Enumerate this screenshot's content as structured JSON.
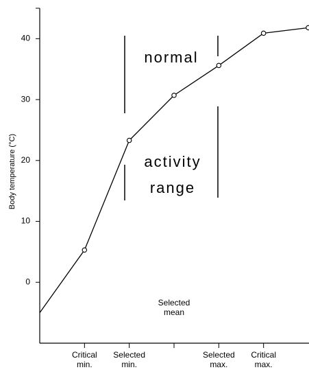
{
  "chart_data": {
    "type": "line",
    "y_label": "Body temperature (°C)",
    "categories": [
      null,
      "Critical min.",
      "Selected min.",
      "Selected mean",
      "Selected max.",
      "Critical max.",
      null
    ],
    "values": [
      -5,
      5.3,
      23.3,
      30.7,
      35.6,
      40.9,
      41.8
    ],
    "color": "#000000",
    "ylim": [
      -10,
      45
    ],
    "yticks": [
      0,
      10,
      20,
      30,
      40
    ],
    "annotations": [
      "normal",
      "activity",
      "range"
    ]
  }
}
